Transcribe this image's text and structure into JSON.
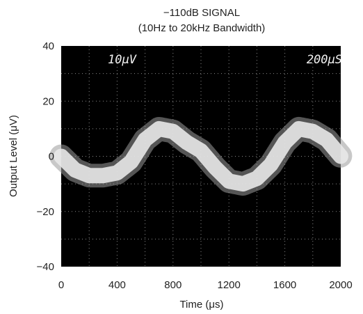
{
  "chart_data": {
    "type": "line",
    "title": "−110dB SIGNAL",
    "subtitle": "(10Hz to 20kHz Bandwidth)",
    "xlabel": "Time (μs)",
    "ylabel": "Output Level (μV)",
    "xlim": [
      0,
      2000
    ],
    "ylim": [
      -40,
      40
    ],
    "x_ticks": [
      "0",
      "400",
      "800",
      "1200",
      "1600",
      "2000"
    ],
    "y_ticks": [
      "40",
      "20",
      "0",
      "−20",
      "−40"
    ],
    "grid": true,
    "background": "#000000",
    "trace_color": "#e8e8e8",
    "scope_annotations": {
      "left": "10μV",
      "right": "200μS"
    },
    "series": [
      {
        "x": [
          0,
          100,
          200,
          300,
          400,
          500,
          600,
          700,
          800,
          900,
          1000,
          1100,
          1200,
          1300,
          1400,
          1500,
          1600,
          1700,
          1800,
          1900,
          2000
        ],
        "y": [
          0,
          -5,
          -7,
          -7,
          -6,
          -2,
          6,
          10,
          9,
          5,
          2,
          -4,
          -9,
          -10,
          -8,
          -3,
          5,
          10,
          9,
          6,
          0
        ]
      }
    ]
  }
}
